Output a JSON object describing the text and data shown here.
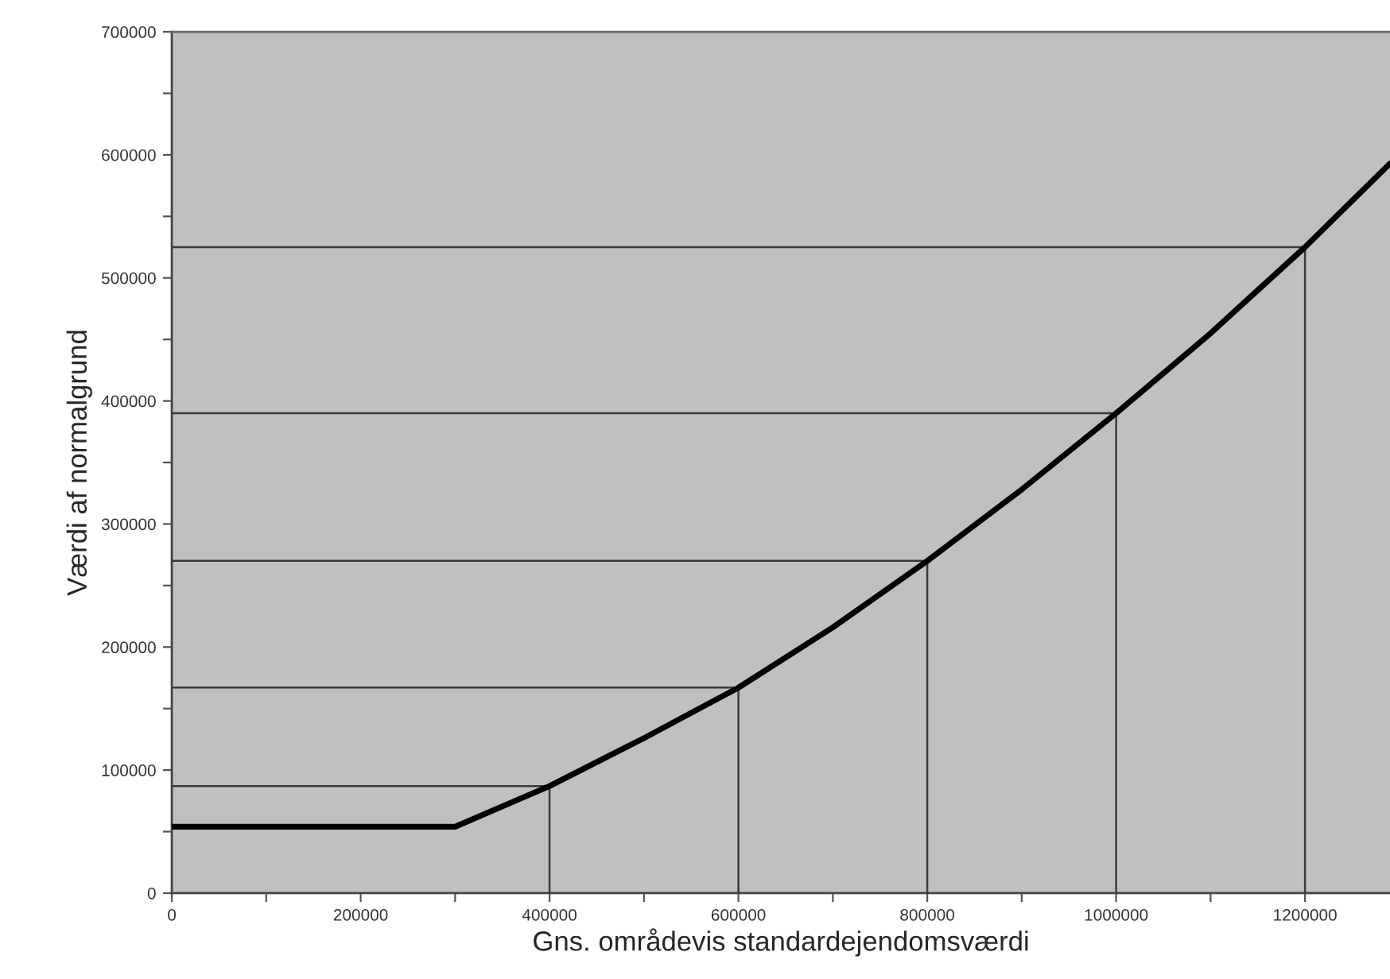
{
  "chart_data": {
    "type": "line",
    "xlabel": "Gns. områdevis standardejendomsværdi",
    "ylabel": "Værdi af normalgrund",
    "x": [
      0,
      300000,
      400000,
      500000,
      600000,
      700000,
      800000,
      900000,
      1000000,
      1100000,
      1200000,
      1290000
    ],
    "series": [
      {
        "color": "#000000",
        "values": [
          54000,
          54000,
          87000,
          126000,
          167000,
          216000,
          270000,
          328000,
          390000,
          455000,
          525000,
          593000
        ]
      }
    ],
    "xlim": [
      0,
      1290000
    ],
    "ylim": [
      0,
      700000
    ],
    "xticks": [
      0,
      {
        "value": 100000,
        "label": null
      },
      200000,
      {
        "value": 300000,
        "label": null
      },
      400000,
      {
        "value": 500000,
        "label": null
      },
      600000,
      {
        "value": 700000,
        "label": null
      },
      800000,
      {
        "value": 900000,
        "label": null
      },
      1000000,
      {
        "value": 1100000,
        "label": null
      },
      1200000
    ],
    "yticks": [
      0,
      {
        "value": 50000,
        "label": null
      },
      100000,
      {
        "value": 150000,
        "label": null
      },
      200000,
      {
        "value": 250000,
        "label": null
      },
      300000,
      {
        "value": 350000,
        "label": null
      },
      400000,
      {
        "value": 450000,
        "label": null
      },
      500000,
      {
        "value": 550000,
        "label": null
      },
      600000,
      {
        "value": 650000,
        "label": null
      },
      700000
    ],
    "ref_lines": [
      {
        "axis": "x",
        "value": 400000
      },
      {
        "axis": "x",
        "value": 600000
      },
      {
        "axis": "x",
        "value": 800000
      },
      {
        "axis": "x",
        "value": 1000000
      },
      {
        "axis": "x",
        "value": 1200000
      },
      {
        "axis": "y",
        "value": 87000
      },
      {
        "axis": "y",
        "value": 167000
      },
      {
        "axis": "y",
        "value": 270000
      },
      {
        "axis": "y",
        "value": 390000
      },
      {
        "axis": "y",
        "value": 525000
      }
    ],
    "grid": false,
    "legend": false,
    "marker": "none",
    "line_style": "solid"
  }
}
